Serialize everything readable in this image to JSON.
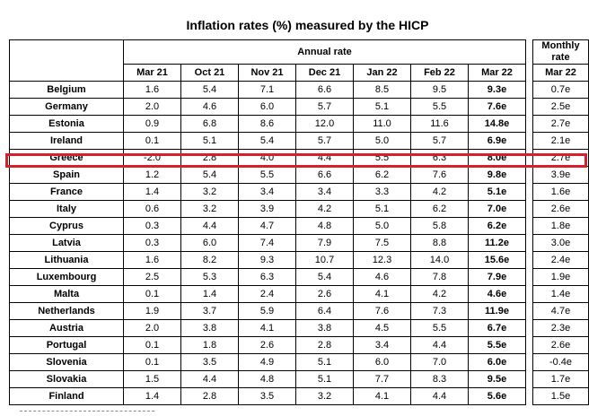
{
  "title": "Inflation rates (%) measured by the HICP",
  "header": {
    "annual_rate": "Annual rate",
    "monthly_rate": [
      "Monthly",
      "rate"
    ],
    "months": [
      "Mar 21",
      "Oct 21",
      "Nov 21",
      "Dec 21",
      "Jan 22",
      "Feb 22",
      "Mar 22"
    ],
    "monthly_month": "Mar 22"
  },
  "highlight_color": "#d8202c",
  "highlighted_country": "Greece",
  "rows": [
    {
      "country": "Belgium",
      "values": [
        "1.6",
        "5.4",
        "7.1",
        "6.6",
        "8.5",
        "9.5",
        "9.3e"
      ],
      "monthly": "0.7e"
    },
    {
      "country": "Germany",
      "values": [
        "2.0",
        "4.6",
        "6.0",
        "5.7",
        "5.1",
        "5.5",
        "7.6e"
      ],
      "monthly": "2.5e"
    },
    {
      "country": "Estonia",
      "values": [
        "0.9",
        "6.8",
        "8.6",
        "12.0",
        "11.0",
        "11.6",
        "14.8e"
      ],
      "monthly": "2.7e"
    },
    {
      "country": "Ireland",
      "values": [
        "0.1",
        "5.1",
        "5.4",
        "5.7",
        "5.0",
        "5.7",
        "6.9e"
      ],
      "monthly": "2.1e"
    },
    {
      "country": "Greece",
      "values": [
        "-2.0",
        "2.8",
        "4.0",
        "4.4",
        "5.5",
        "6.3",
        "8.0e"
      ],
      "monthly": "2.7e"
    },
    {
      "country": "Spain",
      "values": [
        "1.2",
        "5.4",
        "5.5",
        "6.6",
        "6.2",
        "7.6",
        "9.8e"
      ],
      "monthly": "3.9e"
    },
    {
      "country": "France",
      "values": [
        "1.4",
        "3.2",
        "3.4",
        "3.4",
        "3.3",
        "4.2",
        "5.1e"
      ],
      "monthly": "1.6e"
    },
    {
      "country": "Italy",
      "values": [
        "0.6",
        "3.2",
        "3.9",
        "4.2",
        "5.1",
        "6.2",
        "7.0e"
      ],
      "monthly": "2.6e"
    },
    {
      "country": "Cyprus",
      "values": [
        "0.3",
        "4.4",
        "4.7",
        "4.8",
        "5.0",
        "5.8",
        "6.2e"
      ],
      "monthly": "1.8e"
    },
    {
      "country": "Latvia",
      "values": [
        "0.3",
        "6.0",
        "7.4",
        "7.9",
        "7.5",
        "8.8",
        "11.2e"
      ],
      "monthly": "3.0e"
    },
    {
      "country": "Lithuania",
      "values": [
        "1.6",
        "8.2",
        "9.3",
        "10.7",
        "12.3",
        "14.0",
        "15.6e"
      ],
      "monthly": "2.4e"
    },
    {
      "country": "Luxembourg",
      "values": [
        "2.5",
        "5.3",
        "6.3",
        "5.4",
        "4.6",
        "7.8",
        "7.9e"
      ],
      "monthly": "1.9e"
    },
    {
      "country": "Malta",
      "values": [
        "0.1",
        "1.4",
        "2.4",
        "2.6",
        "4.1",
        "4.2",
        "4.6e"
      ],
      "monthly": "1.4e"
    },
    {
      "country": "Netherlands",
      "values": [
        "1.9",
        "3.7",
        "5.9",
        "6.4",
        "7.6",
        "7.3",
        "11.9e"
      ],
      "monthly": "4.7e"
    },
    {
      "country": "Austria",
      "values": [
        "2.0",
        "3.8",
        "4.1",
        "3.8",
        "4.5",
        "5.5",
        "6.7e"
      ],
      "monthly": "2.3e"
    },
    {
      "country": "Portugal",
      "values": [
        "0.1",
        "1.8",
        "2.6",
        "2.8",
        "3.4",
        "4.4",
        "5.5e"
      ],
      "monthly": "2.6e"
    },
    {
      "country": "Slovenia",
      "values": [
        "0.1",
        "3.5",
        "4.9",
        "5.1",
        "6.0",
        "7.0",
        "6.0e"
      ],
      "monthly": "-0.4e"
    },
    {
      "country": "Slovakia",
      "values": [
        "1.5",
        "4.4",
        "4.8",
        "5.1",
        "7.7",
        "8.3",
        "9.5e"
      ],
      "monthly": "1.7e"
    },
    {
      "country": "Finland",
      "values": [
        "1.4",
        "2.8",
        "3.5",
        "3.2",
        "4.1",
        "4.4",
        "5.6e"
      ],
      "monthly": "1.5e"
    }
  ]
}
